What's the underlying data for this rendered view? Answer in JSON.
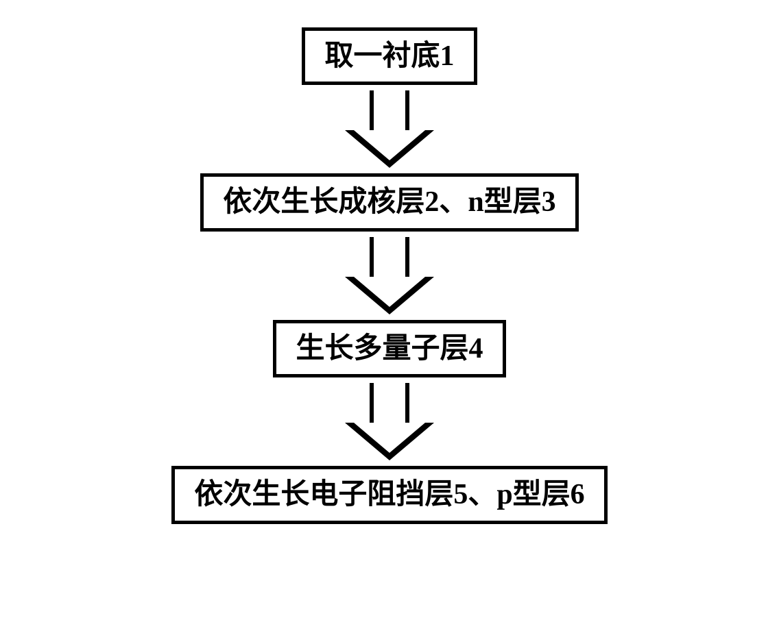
{
  "flowchart": {
    "type": "flowchart",
    "direction": "top-to-bottom",
    "nodes": [
      {
        "id": "n1",
        "label": "取一衬底1",
        "width_class": "narrow"
      },
      {
        "id": "n2",
        "label": "依次生长成核层2、n型层3",
        "width_class": "wide"
      },
      {
        "id": "n3",
        "label": "生长多量子层4",
        "width_class": "medium"
      },
      {
        "id": "n4",
        "label": "依次生长电子阻挡层5、p型层6",
        "width_class": "wide"
      }
    ],
    "edges": [
      {
        "from": "n1",
        "to": "n2",
        "style": "block-arrow"
      },
      {
        "from": "n2",
        "to": "n3",
        "style": "block-arrow"
      },
      {
        "from": "n3",
        "to": "n4",
        "style": "block-arrow"
      }
    ],
    "style": {
      "node_border_color": "#000000",
      "node_border_width": 5,
      "node_bg": "#ffffff",
      "node_fontsize": 42,
      "node_fontweight": "bold",
      "text_color": "#000000",
      "arrow_color": "#000000",
      "arrow_stem_width": 58,
      "arrow_stem_height": 58,
      "arrow_head_width": 130,
      "arrow_head_height": 55,
      "background": "#ffffff",
      "font_family": "SimSun"
    }
  }
}
